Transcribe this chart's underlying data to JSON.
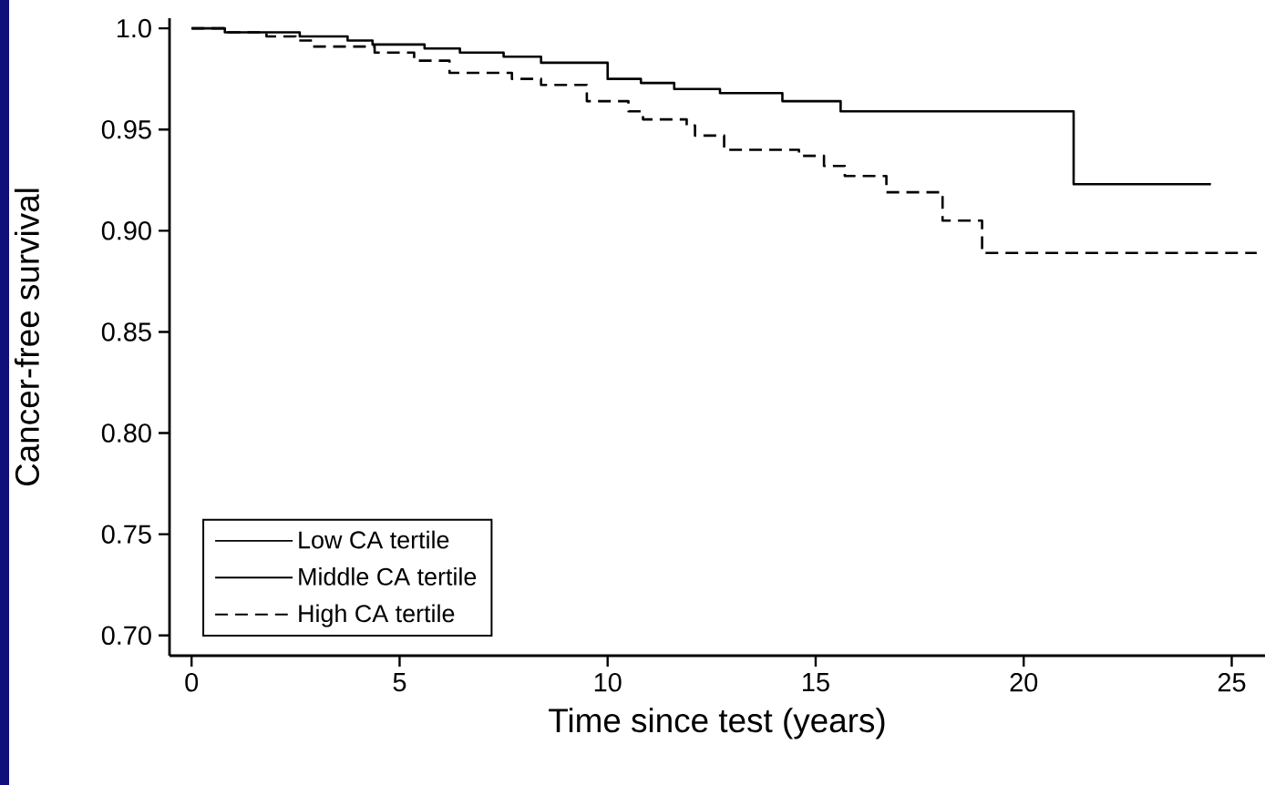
{
  "chart_data": {
    "type": "step",
    "xlabel": "Time since test (years)",
    "ylabel": "Cancer-free survival",
    "xlim": [
      -0.53,
      25.8
    ],
    "ylim": [
      0.69,
      1.005
    ],
    "xticks": [
      0,
      5,
      10,
      15,
      20,
      25
    ],
    "yticks": [
      {
        "value": 0.7,
        "label": "0.70"
      },
      0.75,
      {
        "value": 0.8,
        "label": "0.80"
      },
      0.85,
      {
        "value": 0.9,
        "label": "0.90"
      },
      0.95,
      {
        "value": 1.0,
        "label": "1.0"
      }
    ],
    "grid": false,
    "legend": "bottom left",
    "marker": "none",
    "series": [
      {
        "name": "Low CA tertile",
        "color": "#000000",
        "line_style": "solid",
        "x": [
          0,
          0.8,
          2.6,
          3.75,
          4.35,
          5.6,
          6.45,
          7.5,
          8.4,
          10.0,
          10.8,
          11.6,
          12.7,
          14.2,
          15.6,
          21.2,
          24.5
        ],
        "values": [
          1.0,
          0.998,
          0.996,
          0.994,
          0.992,
          0.99,
          0.988,
          0.986,
          0.983,
          0.975,
          0.973,
          0.97,
          0.968,
          0.964,
          0.959,
          0.923,
          0.923
        ]
      },
      {
        "name": "Middle CA tertile"
      },
      {
        "name": "High CA tertile",
        "color": "#000000",
        "line_style": "dashed",
        "x": [
          0,
          0.8,
          1.8,
          2.5,
          2.9,
          4.4,
          5.35,
          6.2,
          7.7,
          8.4,
          9.5,
          10.5,
          10.85,
          11.9,
          12.1,
          12.8,
          14.6,
          15.2,
          15.7,
          16.7,
          18.05,
          19.0,
          25.6
        ],
        "values": [
          1.0,
          0.998,
          0.996,
          0.994,
          0.991,
          0.988,
          0.984,
          0.978,
          0.975,
          0.972,
          0.964,
          0.959,
          0.955,
          0.952,
          0.947,
          0.94,
          0.937,
          0.932,
          0.927,
          0.919,
          0.905,
          0.889,
          0.889
        ]
      }
    ]
  }
}
